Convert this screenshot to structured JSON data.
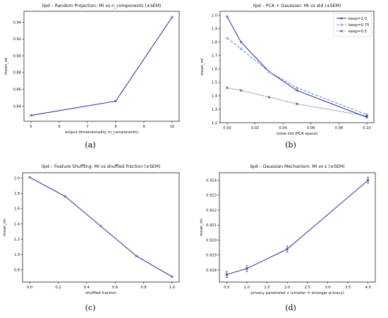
{
  "chart_data": [
    {
      "type": "line",
      "title": "ilpd – Random Projection: MI vs n_components (±SEM)",
      "xlabel": "output dimensionality (n_components)",
      "ylabel": "mean_mi",
      "caption": "(a)",
      "xlim": [
        4.75,
        10.25
      ],
      "ylim": [
        0.822,
        0.953
      ],
      "xticks": [
        5,
        6,
        7,
        8,
        9,
        10
      ],
      "yticks": [
        0.84,
        0.86,
        0.88,
        0.9,
        0.92,
        0.94
      ],
      "grid": false,
      "series": [
        {
          "x": [
            5,
            8,
            10
          ],
          "values": [
            0.829,
            0.846,
            0.946
          ],
          "color": "#3a3aa0",
          "dash": ""
        }
      ]
    },
    {
      "type": "line",
      "title": "ilpd – PCA + Gaussian: MI vs std (±SEM)",
      "xlabel": "noise std (PCA space)",
      "ylabel": "mean_mi",
      "caption": "(b)",
      "xlim": [
        -0.005,
        0.105
      ],
      "ylim": [
        1.2,
        2.03
      ],
      "xticks": [
        0.0,
        0.02,
        0.04,
        0.06,
        0.08,
        0.1
      ],
      "yticks": [
        1.2,
        1.3,
        1.4,
        1.5,
        1.6,
        1.7,
        1.8,
        1.9,
        2.0
      ],
      "grid": false,
      "legend": "top-right",
      "series": [
        {
          "name": "keep=1.0",
          "x": [
            0,
            0.01,
            0.03,
            0.05,
            0.1
          ],
          "values": [
            1.99,
            1.8,
            1.58,
            1.44,
            1.24
          ],
          "color": "#3a3aa0",
          "dash": ""
        },
        {
          "name": "keep=0.75",
          "x": [
            0,
            0.01,
            0.03,
            0.05,
            0.1
          ],
          "values": [
            1.83,
            1.75,
            1.58,
            1.46,
            1.26
          ],
          "color": "#6a8fd0",
          "dash": "4,2"
        },
        {
          "name": "keep=0.5",
          "x": [
            0,
            0.01,
            0.03,
            0.05,
            0.1
          ],
          "values": [
            1.46,
            1.44,
            1.39,
            1.34,
            1.25
          ],
          "color": "#3a3a70",
          "dash": "1,1.5"
        }
      ]
    },
    {
      "type": "line",
      "title": "ilpd – Feature Shuffling: MI vs shuffled fraction (±SEM)",
      "xlabel": "shuffled fraction",
      "ylabel": "mean_mi",
      "caption": "(c)",
      "xlim": [
        -0.05,
        1.05
      ],
      "ylim": [
        0.64,
        2.07
      ],
      "xticks": [
        0.0,
        0.2,
        0.4,
        0.6,
        0.8,
        1.0
      ],
      "yticks": [
        0.8,
        1.0,
        1.2,
        1.4,
        1.6,
        1.8,
        2.0
      ],
      "grid": false,
      "series": [
        {
          "x": [
            0,
            0.25,
            0.5,
            0.75,
            1.0
          ],
          "values": [
            2.01,
            1.76,
            1.37,
            0.98,
            0.71
          ],
          "color": "#3a3aa0",
          "dash": ""
        }
      ]
    },
    {
      "type": "line",
      "title": "ilpd – Gaussian Mechanism: MI vs ε (±SEM)",
      "xlabel": "privacy parameter ε (smaller = stronger privacy)",
      "ylabel": "mean_mi",
      "caption": "(d)",
      "xlim": [
        0.32,
        4.18
      ],
      "ylim": [
        0.9172,
        0.9245
      ],
      "xticks": [
        0.5,
        1.0,
        1.5,
        2.0,
        2.5,
        3.0,
        3.5,
        4.0
      ],
      "yticks": [
        0.918,
        0.919,
        0.92,
        0.921,
        0.922,
        0.923,
        0.924
      ],
      "grid": false,
      "series": [
        {
          "x": [
            0.5,
            1.0,
            2.0,
            4.0
          ],
          "values": [
            0.9177,
            0.9181,
            0.9194,
            0.924
          ],
          "err": [
            0.0002,
            0.0002,
            0.0002,
            0.0002
          ],
          "color": "#3a3aa0",
          "dash": ""
        }
      ]
    }
  ]
}
